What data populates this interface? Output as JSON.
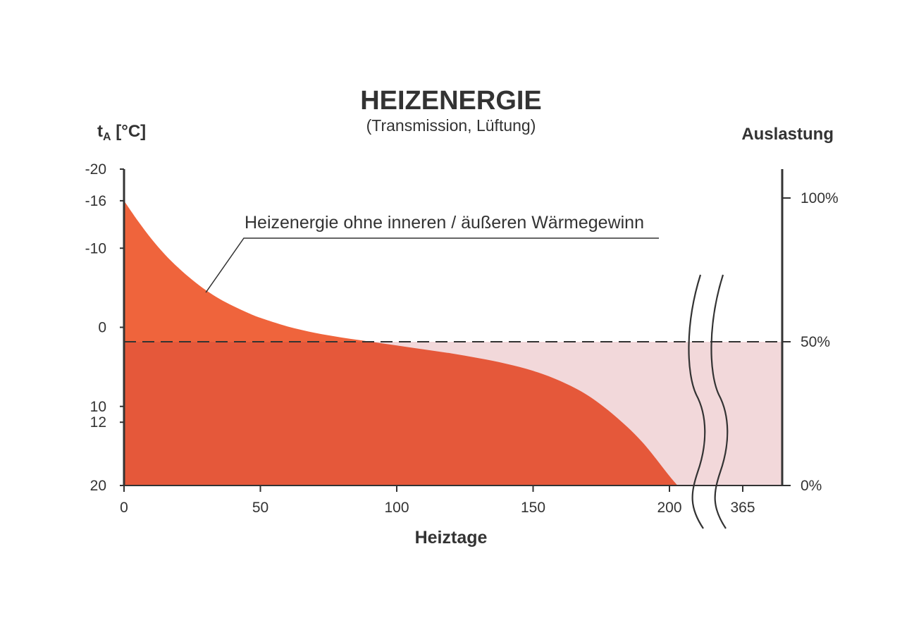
{
  "chart_data": {
    "type": "area",
    "title": "HEIZENERGIE",
    "subtitle": "(Transmission, Lüftung)",
    "xlabel": "Heiztage",
    "ylabel_left_main": "t",
    "ylabel_left_sub": "A",
    "ylabel_left_unit": " [°C]",
    "ylabel_right": "Auslastung",
    "annotation": "Heizenergie ohne inneren / äußeren Wärmegewinn",
    "x_ticks": [
      {
        "value": 0,
        "label": "0"
      },
      {
        "value": 50,
        "label": "50"
      },
      {
        "value": 100,
        "label": "100"
      },
      {
        "value": 150,
        "label": "150"
      },
      {
        "value": 200,
        "label": "200"
      },
      {
        "value": 365,
        "label": "365"
      }
    ],
    "y_left_ticks": [
      {
        "value": -20,
        "label": "-20"
      },
      {
        "value": -16,
        "label": "-16"
      },
      {
        "value": -10,
        "label": "-10"
      },
      {
        "value": 0,
        "label": "0"
      },
      {
        "value": 10,
        "label": "10"
      },
      {
        "value": 12,
        "label": "12"
      },
      {
        "value": 20,
        "label": "20"
      }
    ],
    "y_right_ticks": [
      {
        "value": 100,
        "label": "100%"
      },
      {
        "value": 50,
        "label": "50%"
      },
      {
        "value": 0,
        "label": "0%"
      }
    ],
    "xlim": [
      0,
      365
    ],
    "x_break": [
      205,
      341
    ],
    "ylim_left": [
      -20,
      20
    ],
    "ylim_right": [
      0,
      110
    ],
    "threshold_line": {
      "y_right": 50,
      "style": "dashed"
    },
    "series": [
      {
        "x": [
          0,
          5,
          10,
          15,
          20,
          25,
          30,
          35,
          40,
          45,
          50,
          60,
          70,
          80,
          90,
          100,
          110,
          120,
          130,
          140,
          150,
          160,
          170,
          180,
          190,
          200,
          203
        ],
        "y": [
          -16,
          -13.5,
          -11.2,
          -9.2,
          -7.5,
          -6,
          -4.7,
          -3.6,
          -2.7,
          -1.9,
          -1.2,
          -0.1,
          0.7,
          1.3,
          1.8,
          2.3,
          2.8,
          3.3,
          3.9,
          4.6,
          5.5,
          6.8,
          8.6,
          11.2,
          14.5,
          18.8,
          20
        ]
      }
    ],
    "colors": {
      "above_threshold": "#ef643c",
      "below_threshold": "#e5583a",
      "unused_capacity": "#f2d8da",
      "axis": "#333333"
    }
  }
}
